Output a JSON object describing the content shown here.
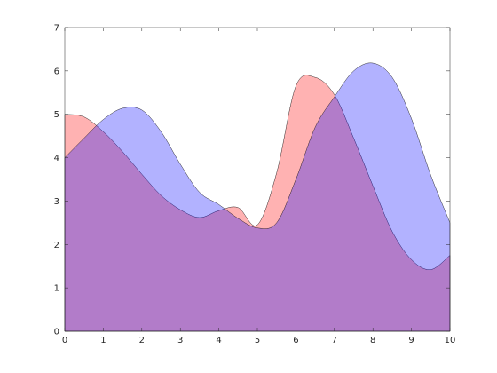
{
  "chart_data": {
    "type": "area",
    "title": "",
    "xlabel": "",
    "ylabel": "",
    "xlim": [
      0,
      10
    ],
    "ylim": [
      0,
      7
    ],
    "xticks": [
      0,
      1,
      2,
      3,
      4,
      5,
      6,
      7,
      8,
      9,
      10
    ],
    "yticks": [
      0,
      1,
      2,
      3,
      4,
      5,
      6,
      7
    ],
    "grid": false,
    "legend": "none",
    "series": [
      {
        "color": "#ff0000",
        "opacity": 0.3,
        "x": [
          0,
          0.5,
          1,
          1.5,
          2,
          2.5,
          3,
          3.5,
          4,
          4.5,
          5,
          5.5,
          6,
          6.5,
          7,
          7.5,
          8,
          8.5,
          9,
          9.5,
          10
        ],
        "y": [
          5.0,
          4.94,
          4.6,
          4.14,
          3.62,
          3.13,
          2.8,
          2.62,
          2.78,
          2.85,
          2.45,
          3.65,
          5.65,
          5.85,
          5.45,
          4.45,
          3.35,
          2.3,
          1.65,
          1.42,
          1.75
        ]
      },
      {
        "color": "#0000ff",
        "opacity": 0.3,
        "x": [
          0,
          0.5,
          1,
          1.5,
          2,
          2.5,
          3,
          3.5,
          4,
          4.5,
          5,
          5.5,
          6,
          6.5,
          7,
          7.5,
          8,
          8.5,
          9,
          9.5,
          10
        ],
        "y": [
          4.0,
          4.45,
          4.88,
          5.14,
          5.1,
          4.6,
          3.85,
          3.2,
          2.92,
          2.6,
          2.38,
          2.5,
          3.5,
          4.7,
          5.4,
          6.0,
          6.18,
          5.85,
          4.9,
          3.6,
          2.5
        ]
      }
    ]
  }
}
